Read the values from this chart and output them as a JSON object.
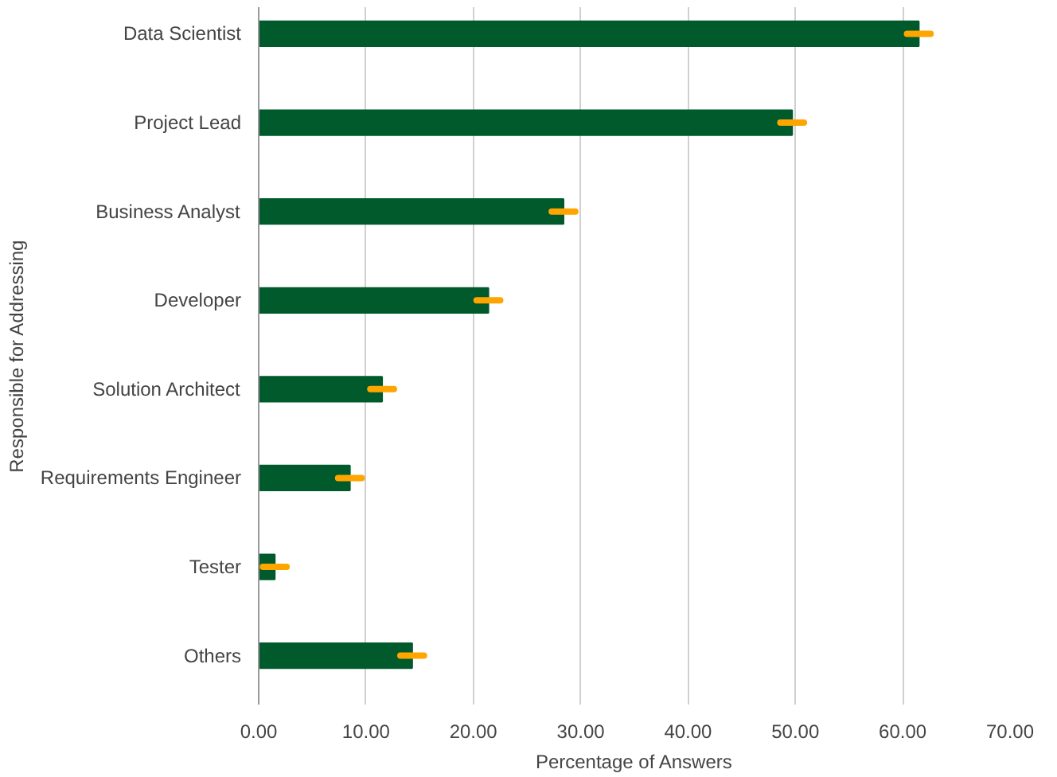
{
  "chart_data": {
    "type": "bar",
    "orientation": "horizontal",
    "xlabel": "Percentage of Answers",
    "ylabel": "Responsible for Addressing",
    "categories": [
      "Data Scientist",
      "Project Lead",
      "Business Analyst",
      "Developer",
      "Solution Architect",
      "Requirements Engineer",
      "Tester",
      "Others"
    ],
    "series": [
      {
        "color": "#005a2b",
        "values": [
          61.5,
          49.7,
          28.4,
          21.4,
          11.5,
          8.5,
          1.5,
          14.3
        ],
        "errors": [
          1.1,
          1.1,
          1.1,
          1.1,
          1.1,
          1.1,
          1.1,
          1.1
        ]
      }
    ],
    "xlim": [
      0,
      70
    ],
    "xticks": [
      {
        "value": 0,
        "label": "0.00"
      },
      {
        "value": 10,
        "label": "10.00"
      },
      {
        "value": 20,
        "label": "20.00"
      },
      {
        "value": 30,
        "label": "30.00"
      },
      {
        "value": 40,
        "label": "40.00"
      },
      {
        "value": 50,
        "label": "50.00"
      },
      {
        "value": 60,
        "label": "60.00"
      },
      {
        "value": 70,
        "label": "70.00"
      }
    ],
    "grid": "x"
  }
}
